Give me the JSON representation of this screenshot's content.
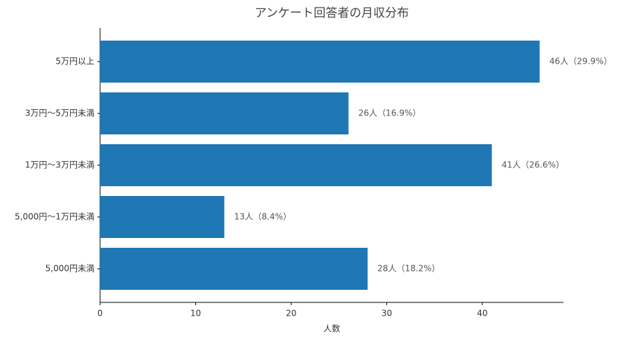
{
  "chart_data": {
    "type": "barh",
    "title": "アンケート回答者の月収分布",
    "xlabel": "人数",
    "categories": [
      "5万円以上",
      "3万円〜5万円未満",
      "1万円〜3万円未満",
      "5,000円〜1万円未満",
      "5,000円未満"
    ],
    "values": [
      46,
      26,
      41,
      13,
      28
    ],
    "value_labels": [
      "46人（29.9%）",
      "26人（16.9%）",
      "41人（26.6%）",
      "13人（8.4%）",
      "28人（18.2%）"
    ],
    "color": "#1f77b4",
    "xlim": [
      0,
      48.5
    ],
    "xticks": [
      0,
      10,
      20,
      30,
      40
    ]
  }
}
